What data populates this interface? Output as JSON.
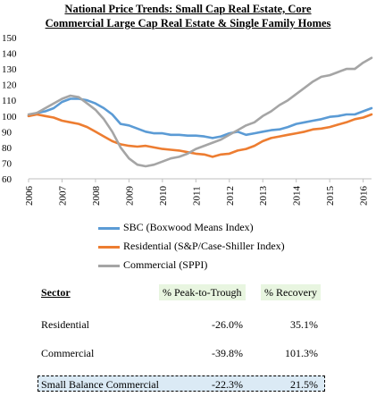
{
  "chart_data": {
    "type": "line",
    "title": [
      "National Price Trends: Small Cap Real Estate, Core",
      "Commercial Large Cap Real Estate & Single Family Homes"
    ],
    "xlabel": "",
    "ylabel": "",
    "xlim": [
      2006,
      2016.25
    ],
    "ylim": [
      60,
      150
    ],
    "x_ticks": [
      "2006",
      "2007",
      "2008",
      "2009",
      "2010",
      "2011",
      "2012",
      "2013",
      "2014",
      "2015",
      "2016"
    ],
    "y_ticks": [
      "150",
      "140",
      "130",
      "120",
      "110",
      "100",
      "90",
      "80",
      "70",
      "60"
    ],
    "grid": false,
    "legend_position": "bottom",
    "series": [
      {
        "name": "SBC (Boxwood Means Index)",
        "color": "#5b9bd5",
        "points": [
          [
            2006,
            100
          ],
          [
            2006.25,
            102
          ],
          [
            2006.5,
            103
          ],
          [
            2006.75,
            105
          ],
          [
            2007,
            109
          ],
          [
            2007.25,
            111
          ],
          [
            2007.5,
            111
          ],
          [
            2007.75,
            110
          ],
          [
            2008,
            108
          ],
          [
            2008.25,
            105
          ],
          [
            2008.5,
            101
          ],
          [
            2008.75,
            95
          ],
          [
            2009,
            94
          ],
          [
            2009.25,
            92
          ],
          [
            2009.5,
            90
          ],
          [
            2009.75,
            89
          ],
          [
            2010,
            89
          ],
          [
            2010.25,
            88
          ],
          [
            2010.5,
            88
          ],
          [
            2010.75,
            87.5
          ],
          [
            2011,
            87.5
          ],
          [
            2011.25,
            87
          ],
          [
            2011.5,
            86
          ],
          [
            2011.75,
            87
          ],
          [
            2012,
            89
          ],
          [
            2012.25,
            90
          ],
          [
            2012.5,
            88
          ],
          [
            2012.75,
            89
          ],
          [
            2013,
            90
          ],
          [
            2013.25,
            91
          ],
          [
            2013.5,
            91.5
          ],
          [
            2013.75,
            93
          ],
          [
            2014,
            95
          ],
          [
            2014.25,
            96
          ],
          [
            2014.5,
            97
          ],
          [
            2014.75,
            98
          ],
          [
            2015,
            99.5
          ],
          [
            2015.25,
            100
          ],
          [
            2015.5,
            101
          ],
          [
            2015.75,
            101
          ],
          [
            2016,
            103
          ],
          [
            2016.25,
            105
          ]
        ]
      },
      {
        "name": "Residential (S&P/Case-Shiller Index)",
        "color": "#ed7d31",
        "points": [
          [
            2006,
            100
          ],
          [
            2006.25,
            101
          ],
          [
            2006.5,
            100
          ],
          [
            2006.75,
            99
          ],
          [
            2007,
            97
          ],
          [
            2007.25,
            96
          ],
          [
            2007.5,
            95
          ],
          [
            2007.75,
            93
          ],
          [
            2008,
            90
          ],
          [
            2008.25,
            87
          ],
          [
            2008.5,
            84
          ],
          [
            2008.75,
            82
          ],
          [
            2009,
            81
          ],
          [
            2009.25,
            80.5
          ],
          [
            2009.5,
            81
          ],
          [
            2009.75,
            80
          ],
          [
            2010,
            79
          ],
          [
            2010.25,
            78.5
          ],
          [
            2010.5,
            78
          ],
          [
            2010.75,
            77
          ],
          [
            2011,
            76
          ],
          [
            2011.25,
            75.5
          ],
          [
            2011.5,
            74
          ],
          [
            2011.75,
            75.5
          ],
          [
            2012,
            76
          ],
          [
            2012.25,
            78
          ],
          [
            2012.5,
            79
          ],
          [
            2012.75,
            81
          ],
          [
            2013,
            84
          ],
          [
            2013.25,
            86
          ],
          [
            2013.5,
            87
          ],
          [
            2013.75,
            88
          ],
          [
            2014,
            89
          ],
          [
            2014.25,
            90
          ],
          [
            2014.5,
            91.5
          ],
          [
            2014.75,
            92
          ],
          [
            2015,
            93
          ],
          [
            2015.25,
            94.5
          ],
          [
            2015.5,
            96
          ],
          [
            2015.75,
            98
          ],
          [
            2016,
            99
          ],
          [
            2016.25,
            101
          ]
        ]
      },
      {
        "name": "Commercial (SPPI)",
        "color": "#a5a5a5",
        "points": [
          [
            2006,
            101
          ],
          [
            2006.25,
            102
          ],
          [
            2006.5,
            105
          ],
          [
            2006.75,
            108
          ],
          [
            2007,
            111
          ],
          [
            2007.25,
            113
          ],
          [
            2007.5,
            112
          ],
          [
            2007.75,
            108
          ],
          [
            2008,
            104
          ],
          [
            2008.25,
            98
          ],
          [
            2008.5,
            90
          ],
          [
            2008.75,
            80
          ],
          [
            2009,
            73
          ],
          [
            2009.25,
            69
          ],
          [
            2009.5,
            68
          ],
          [
            2009.75,
            69
          ],
          [
            2010,
            71
          ],
          [
            2010.25,
            73
          ],
          [
            2010.5,
            74
          ],
          [
            2010.75,
            76
          ],
          [
            2011,
            79
          ],
          [
            2011.25,
            81
          ],
          [
            2011.5,
            83
          ],
          [
            2011.75,
            85
          ],
          [
            2012,
            88
          ],
          [
            2012.25,
            91
          ],
          [
            2012.5,
            94
          ],
          [
            2012.75,
            96
          ],
          [
            2013,
            100
          ],
          [
            2013.25,
            103
          ],
          [
            2013.5,
            107
          ],
          [
            2013.75,
            110
          ],
          [
            2014,
            114
          ],
          [
            2014.25,
            118
          ],
          [
            2014.5,
            122
          ],
          [
            2014.75,
            125
          ],
          [
            2015,
            126
          ],
          [
            2015.25,
            128
          ],
          [
            2015.5,
            130
          ],
          [
            2015.75,
            130
          ],
          [
            2016,
            134
          ],
          [
            2016.25,
            137
          ]
        ]
      }
    ]
  },
  "table": {
    "headers": {
      "sector": "Sector",
      "peak": "% Peak-to-Trough",
      "recovery": "% Recovery"
    },
    "rows": [
      {
        "sector": "Residential",
        "peak": "-26.0%",
        "recovery": "35.1%"
      },
      {
        "sector": "Commercial",
        "peak": "-39.8%",
        "recovery": "101.3%"
      },
      {
        "sector": "Small Balance Commercial",
        "peak": "-22.3%",
        "recovery": "21.5%"
      }
    ]
  }
}
